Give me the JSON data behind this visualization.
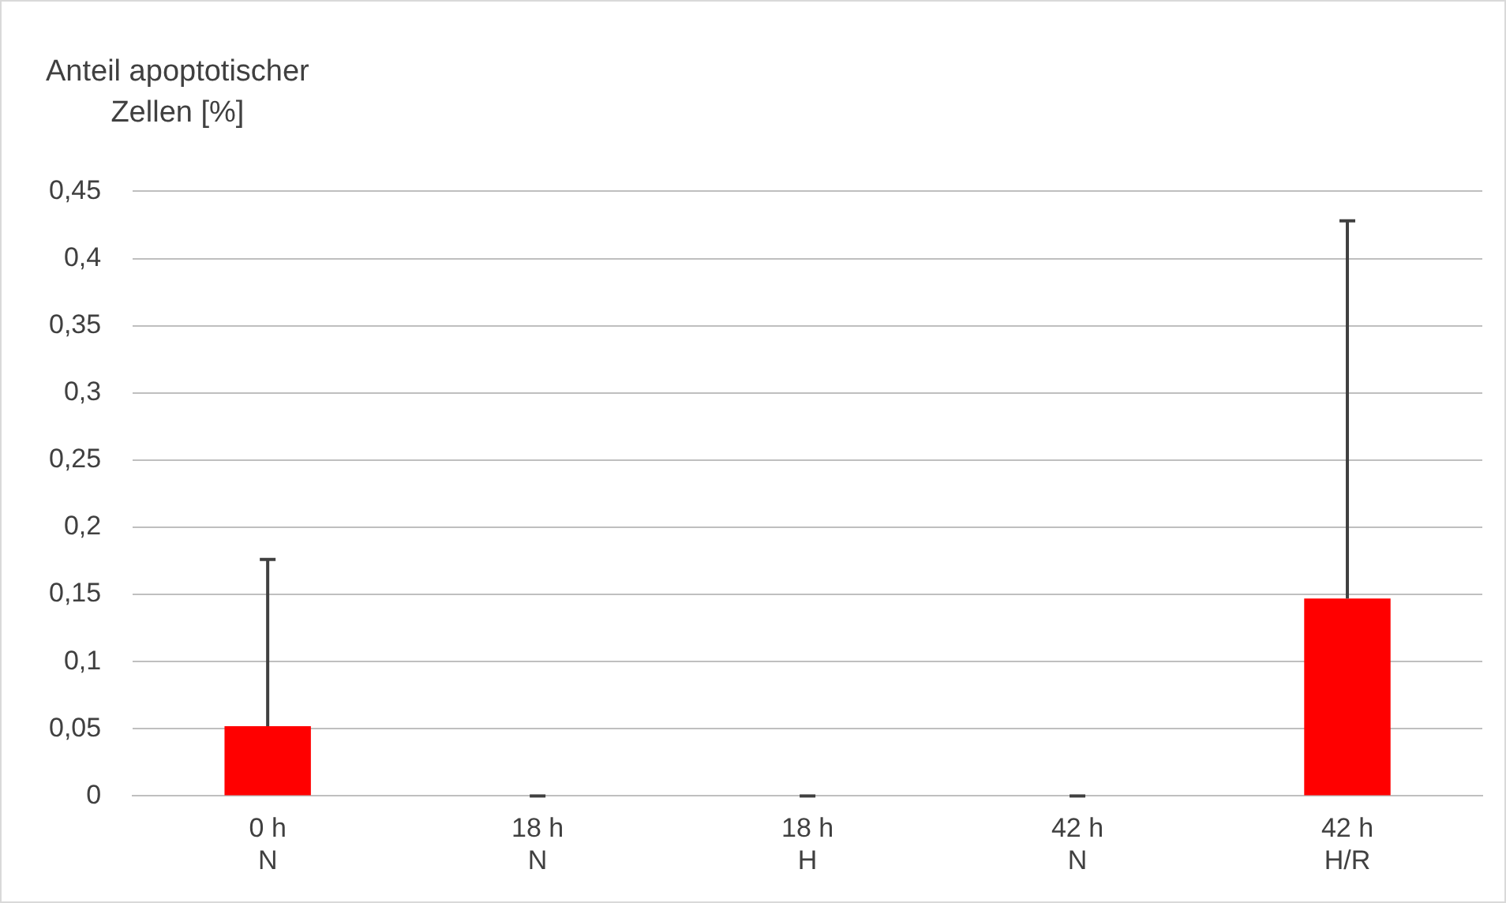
{
  "chart_data": {
    "type": "bar",
    "ylabel": "Anteil apoptotischer\nZellen [%]",
    "categories": [
      "0 h\nN",
      "18 h\nN",
      "18 h\nH",
      "42 h\nN",
      "42 h\nH/R"
    ],
    "values": [
      0.052,
      0,
      0,
      0,
      0.147
    ],
    "errors": [
      [
        0.052,
        0.176
      ],
      [
        0,
        0
      ],
      [
        0,
        0
      ],
      [
        0,
        0
      ],
      [
        0.147,
        0.428
      ]
    ],
    "color": "#ff0000",
    "ylim": [
      0,
      0.45
    ],
    "yticks": [
      {
        "value": 0,
        "label": "0"
      },
      {
        "value": 0.05,
        "label": "0,05"
      },
      {
        "value": 0.1,
        "label": "0,1"
      },
      {
        "value": 0.15,
        "label": "0,15"
      },
      {
        "value": 0.2,
        "label": "0,2"
      },
      {
        "value": 0.25,
        "label": "0,25"
      },
      {
        "value": 0.3,
        "label": "0,3"
      },
      {
        "value": 0.35,
        "label": "0,35"
      },
      {
        "value": 0.4,
        "label": "0,4"
      },
      {
        "value": 0.45,
        "label": "0,45"
      }
    ],
    "grid": "y",
    "legend": false
  }
}
